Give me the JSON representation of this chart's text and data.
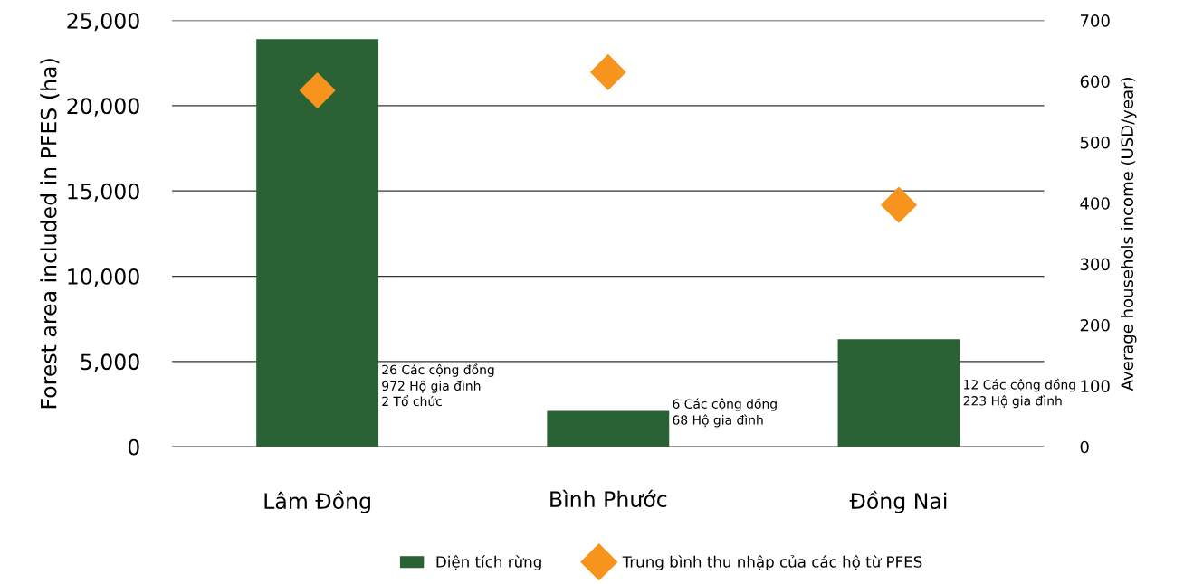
{
  "chart_data": {
    "type": "bar",
    "ylabel": "Forest area included in PFES (ha)",
    "y2label": "Average househols income (USD/year)",
    "categories": [
      "Lâm Đồng",
      "Bình Phước",
      "Đồng Nai"
    ],
    "series": [
      {
        "name": "Diện tích rừng",
        "color": "#2a6235",
        "values": [
          23900,
          2100,
          6300
        ]
      },
      {
        "name": "Trung bình thu nhập của các hộ từ PFES",
        "color": "#f7941d",
        "type": "scatter",
        "axis": "y2",
        "marker": "diamond",
        "values": [
          585,
          615,
          397
        ]
      }
    ],
    "ylim": [
      0,
      25000
    ],
    "yticks": [
      {
        "value": 0,
        "label": "0"
      },
      {
        "value": 5000,
        "label": "5,000"
      },
      {
        "value": 10000,
        "label": "10,000"
      },
      {
        "value": 15000,
        "label": "15,000"
      },
      {
        "value": 20000,
        "label": "20,000"
      },
      {
        "value": 25000,
        "label": "25,000"
      }
    ],
    "y2lim": [
      0,
      700
    ],
    "y2ticks": [
      0,
      100,
      200,
      300,
      400,
      500,
      600,
      700
    ],
    "grid": "y",
    "legend": "bottom",
    "annotations": [
      "26 Các cộng đồng\n972 Hộ gia đình\n2 Tổ chức",
      "6 Các cộng đồng\n68 Hộ gia đình",
      "12 Các cộng đồng\n223 Hộ gia đình"
    ]
  }
}
